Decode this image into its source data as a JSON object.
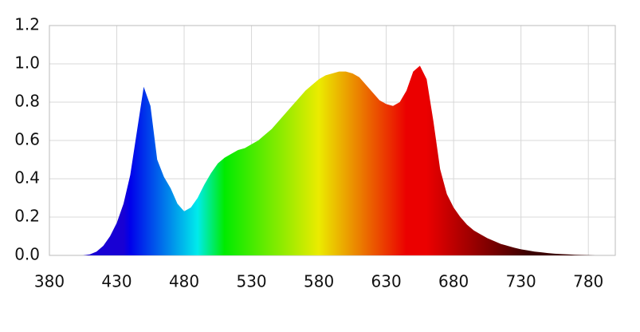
{
  "chart_data": {
    "type": "area",
    "x": [
      380,
      385,
      390,
      395,
      400,
      405,
      410,
      415,
      420,
      425,
      430,
      435,
      440,
      445,
      450,
      455,
      460,
      465,
      470,
      475,
      480,
      485,
      490,
      495,
      500,
      505,
      510,
      515,
      520,
      525,
      530,
      535,
      540,
      545,
      550,
      555,
      560,
      565,
      570,
      575,
      580,
      585,
      590,
      595,
      600,
      605,
      610,
      615,
      620,
      625,
      630,
      635,
      640,
      645,
      650,
      655,
      660,
      665,
      670,
      675,
      680,
      685,
      690,
      695,
      700,
      705,
      710,
      715,
      720,
      725,
      730,
      735,
      740,
      745,
      750,
      755,
      760,
      765,
      770,
      775,
      780,
      785,
      790,
      795,
      800
    ],
    "values": [
      0,
      0,
      0,
      0,
      0,
      0,
      0.005,
      0.02,
      0.05,
      0.1,
      0.17,
      0.27,
      0.42,
      0.65,
      0.88,
      0.78,
      0.5,
      0.41,
      0.35,
      0.27,
      0.23,
      0.25,
      0.3,
      0.37,
      0.43,
      0.48,
      0.51,
      0.53,
      0.55,
      0.56,
      0.58,
      0.6,
      0.63,
      0.66,
      0.7,
      0.74,
      0.78,
      0.82,
      0.86,
      0.89,
      0.92,
      0.94,
      0.95,
      0.96,
      0.96,
      0.95,
      0.93,
      0.89,
      0.85,
      0.81,
      0.79,
      0.78,
      0.8,
      0.86,
      0.96,
      0.99,
      0.92,
      0.7,
      0.45,
      0.32,
      0.25,
      0.2,
      0.16,
      0.13,
      0.11,
      0.09,
      0.075,
      0.06,
      0.05,
      0.04,
      0.032,
      0.026,
      0.02,
      0.016,
      0.012,
      0.009,
      0.007,
      0.005,
      0.003,
      0.002,
      0.001,
      0,
      0,
      0,
      0
    ],
    "xlim": [
      380,
      800
    ],
    "ylim": [
      0,
      1.2
    ],
    "xticks": [
      380,
      430,
      480,
      530,
      580,
      630,
      680,
      730,
      780
    ],
    "yticks": [
      {
        "value": 0,
        "label": "0.0"
      },
      0.2,
      0.4,
      0.6,
      0.8,
      {
        "value": 1,
        "label": "1.0"
      },
      1.2
    ],
    "grid": true
  }
}
